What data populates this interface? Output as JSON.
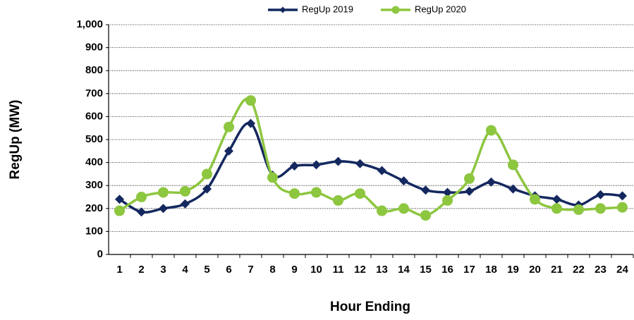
{
  "chart_data": {
    "type": "line",
    "x_label": "Hour Ending",
    "y_label": "RegUp (MW)",
    "categories": [
      "1",
      "2",
      "3",
      "4",
      "5",
      "6",
      "7",
      "8",
      "9",
      "10",
      "11",
      "12",
      "13",
      "14",
      "15",
      "16",
      "17",
      "18",
      "19",
      "20",
      "21",
      "22",
      "23",
      "24"
    ],
    "series": [
      {
        "name": "RegUp 2019",
        "color": "#14285f",
        "marker": "diamond",
        "values": [
          240,
          185,
          200,
          220,
          285,
          450,
          570,
          345,
          385,
          390,
          405,
          395,
          365,
          320,
          280,
          270,
          275,
          315,
          285,
          255,
          240,
          215,
          260,
          255
        ]
      },
      {
        "name": "RegUp 2020",
        "color": "#8dc63f",
        "marker": "circle",
        "values": [
          190,
          250,
          270,
          275,
          350,
          555,
          670,
          335,
          265,
          270,
          235,
          265,
          190,
          200,
          170,
          235,
          330,
          540,
          390,
          240,
          200,
          195,
          200,
          205
        ]
      }
    ],
    "ylim": [
      0,
      1000
    ],
    "yticks": [
      0,
      100,
      200,
      300,
      400,
      500,
      600,
      700,
      800,
      900,
      {
        "value": 1000,
        "label": "1,000"
      }
    ],
    "grid": true,
    "legend": "top",
    "smooth": true
  }
}
